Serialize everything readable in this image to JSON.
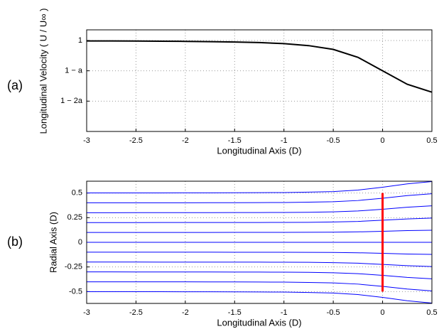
{
  "chart_data": [
    {
      "type": "line",
      "panel_label": "(a)",
      "xlabel": "Longitudinal Axis (D)",
      "ylabel": "Longitudinal Velocity ( U / U∞ )",
      "x": [
        -3,
        -2.75,
        -2.5,
        -2.25,
        -2,
        -1.75,
        -1.5,
        -1.25,
        -1,
        -0.75,
        -0.5,
        -0.25,
        0,
        0.25,
        0.5
      ],
      "series": [
        {
          "color": "#000000",
          "values": [
            0.997,
            0.997,
            0.996,
            0.995,
            0.994,
            0.992,
            0.99,
            0.986,
            0.979,
            0.966,
            0.941,
            0.889,
            0.8,
            0.711,
            0.659
          ]
        }
      ],
      "xlim": [
        -3,
        0.5
      ],
      "xticks": [
        -3,
        -2.5,
        -2,
        -1.5,
        -1,
        -0.5,
        0,
        0.5
      ],
      "ylim": [
        0.4,
        1.07
      ],
      "yticks": [
        {
          "value": 0.6,
          "label": "1 − 2a"
        },
        {
          "value": 0.8,
          "label": "1 − a"
        },
        {
          "value": 1,
          "label": "1"
        }
      ],
      "grid": true
    },
    {
      "type": "line",
      "panel_label": "(b)",
      "xlabel": "Longitudinal Axis (D)",
      "ylabel": "Radial Axis (D)",
      "x": [
        -3,
        -2.75,
        -2.5,
        -2.25,
        -2,
        -1.75,
        -1.5,
        -1.25,
        -1,
        -0.75,
        -0.5,
        -0.25,
        0,
        0.25,
        0.5
      ],
      "series": [
        {
          "color": "#0000ff",
          "values": [
            0.501,
            0.501,
            0.501,
            0.501,
            0.502,
            0.502,
            0.503,
            0.504,
            0.505,
            0.509,
            0.515,
            0.53,
            0.559,
            0.593,
            0.616
          ]
        },
        {
          "color": "#0000ff",
          "values": [
            0.401,
            0.401,
            0.401,
            0.401,
            0.401,
            0.402,
            0.402,
            0.403,
            0.404,
            0.407,
            0.412,
            0.424,
            0.447,
            0.474,
            0.493
          ]
        },
        {
          "color": "#0000ff",
          "values": [
            0.3,
            0.3,
            0.301,
            0.301,
            0.301,
            0.301,
            0.302,
            0.302,
            0.303,
            0.305,
            0.309,
            0.318,
            0.335,
            0.356,
            0.37
          ]
        },
        {
          "color": "#0000ff",
          "values": [
            0.2,
            0.2,
            0.2,
            0.201,
            0.201,
            0.201,
            0.201,
            0.201,
            0.202,
            0.203,
            0.206,
            0.212,
            0.224,
            0.237,
            0.246
          ]
        },
        {
          "color": "#0000ff",
          "values": [
            0.1,
            0.1,
            0.1,
            0.1,
            0.1,
            0.1,
            0.101,
            0.101,
            0.101,
            0.102,
            0.103,
            0.106,
            0.112,
            0.119,
            0.123
          ]
        },
        {
          "color": "#0000ff",
          "values": [
            0,
            0,
            0,
            0,
            0,
            0,
            0,
            0,
            0,
            0,
            0,
            0,
            0,
            0,
            0
          ]
        },
        {
          "color": "#0000ff",
          "values": [
            -0.1,
            -0.1,
            -0.1,
            -0.1,
            -0.1,
            -0.1,
            -0.101,
            -0.101,
            -0.101,
            -0.102,
            -0.103,
            -0.106,
            -0.112,
            -0.119,
            -0.123
          ]
        },
        {
          "color": "#0000ff",
          "values": [
            -0.2,
            -0.2,
            -0.2,
            -0.201,
            -0.201,
            -0.201,
            -0.201,
            -0.201,
            -0.202,
            -0.203,
            -0.206,
            -0.212,
            -0.224,
            -0.237,
            -0.246
          ]
        },
        {
          "color": "#0000ff",
          "values": [
            -0.3,
            -0.3,
            -0.301,
            -0.301,
            -0.301,
            -0.301,
            -0.302,
            -0.302,
            -0.303,
            -0.305,
            -0.309,
            -0.318,
            -0.335,
            -0.356,
            -0.37
          ]
        },
        {
          "color": "#0000ff",
          "values": [
            -0.401,
            -0.401,
            -0.401,
            -0.401,
            -0.401,
            -0.402,
            -0.402,
            -0.403,
            -0.404,
            -0.407,
            -0.412,
            -0.424,
            -0.447,
            -0.474,
            -0.493
          ]
        },
        {
          "color": "#0000ff",
          "values": [
            -0.501,
            -0.501,
            -0.501,
            -0.501,
            -0.502,
            -0.502,
            -0.503,
            -0.504,
            -0.505,
            -0.509,
            -0.515,
            -0.53,
            -0.559,
            -0.593,
            -0.616
          ]
        }
      ],
      "disc": {
        "x": 0,
        "y": [
          -0.5,
          0.5
        ],
        "color": "#ff0000"
      },
      "xlim": [
        -3,
        0.5
      ],
      "xticks": [
        -3,
        -2.5,
        -2,
        -1.5,
        -1,
        -0.5,
        0,
        0.5
      ],
      "ylim": [
        -0.62,
        0.62
      ],
      "yticks": [
        -0.5,
        -0.25,
        0,
        0.25,
        0.5
      ],
      "grid": true
    }
  ]
}
